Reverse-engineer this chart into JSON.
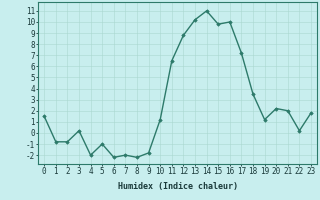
{
  "x": [
    0,
    1,
    2,
    3,
    4,
    5,
    6,
    7,
    8,
    9,
    10,
    11,
    12,
    13,
    14,
    15,
    16,
    17,
    18,
    19,
    20,
    21,
    22,
    23
  ],
  "y": [
    1.5,
    -0.8,
    -0.8,
    0.2,
    -2.0,
    -1.0,
    -2.2,
    -2.0,
    -2.2,
    -1.8,
    1.2,
    6.5,
    8.8,
    10.2,
    11.0,
    9.8,
    10.0,
    7.2,
    3.5,
    1.2,
    2.2,
    2.0,
    0.2,
    1.8
  ],
  "line_color": "#2d7a6a",
  "marker": "D",
  "markersize": 1.8,
  "linewidth": 1.0,
  "bg_color": "#c8eeee",
  "grid_color": "#aad8d0",
  "xlabel": "Humidex (Indice chaleur)",
  "xlabel_fontsize": 6.0,
  "tick_fontsize": 5.5,
  "xlim": [
    -0.5,
    23.5
  ],
  "ylim": [
    -2.8,
    11.8
  ],
  "yticks": [
    -2,
    -1,
    0,
    1,
    2,
    3,
    4,
    5,
    6,
    7,
    8,
    9,
    10,
    11
  ],
  "xticks": [
    0,
    1,
    2,
    3,
    4,
    5,
    6,
    7,
    8,
    9,
    10,
    11,
    12,
    13,
    14,
    15,
    16,
    17,
    18,
    19,
    20,
    21,
    22,
    23
  ],
  "spine_color": "#2d7a6a"
}
